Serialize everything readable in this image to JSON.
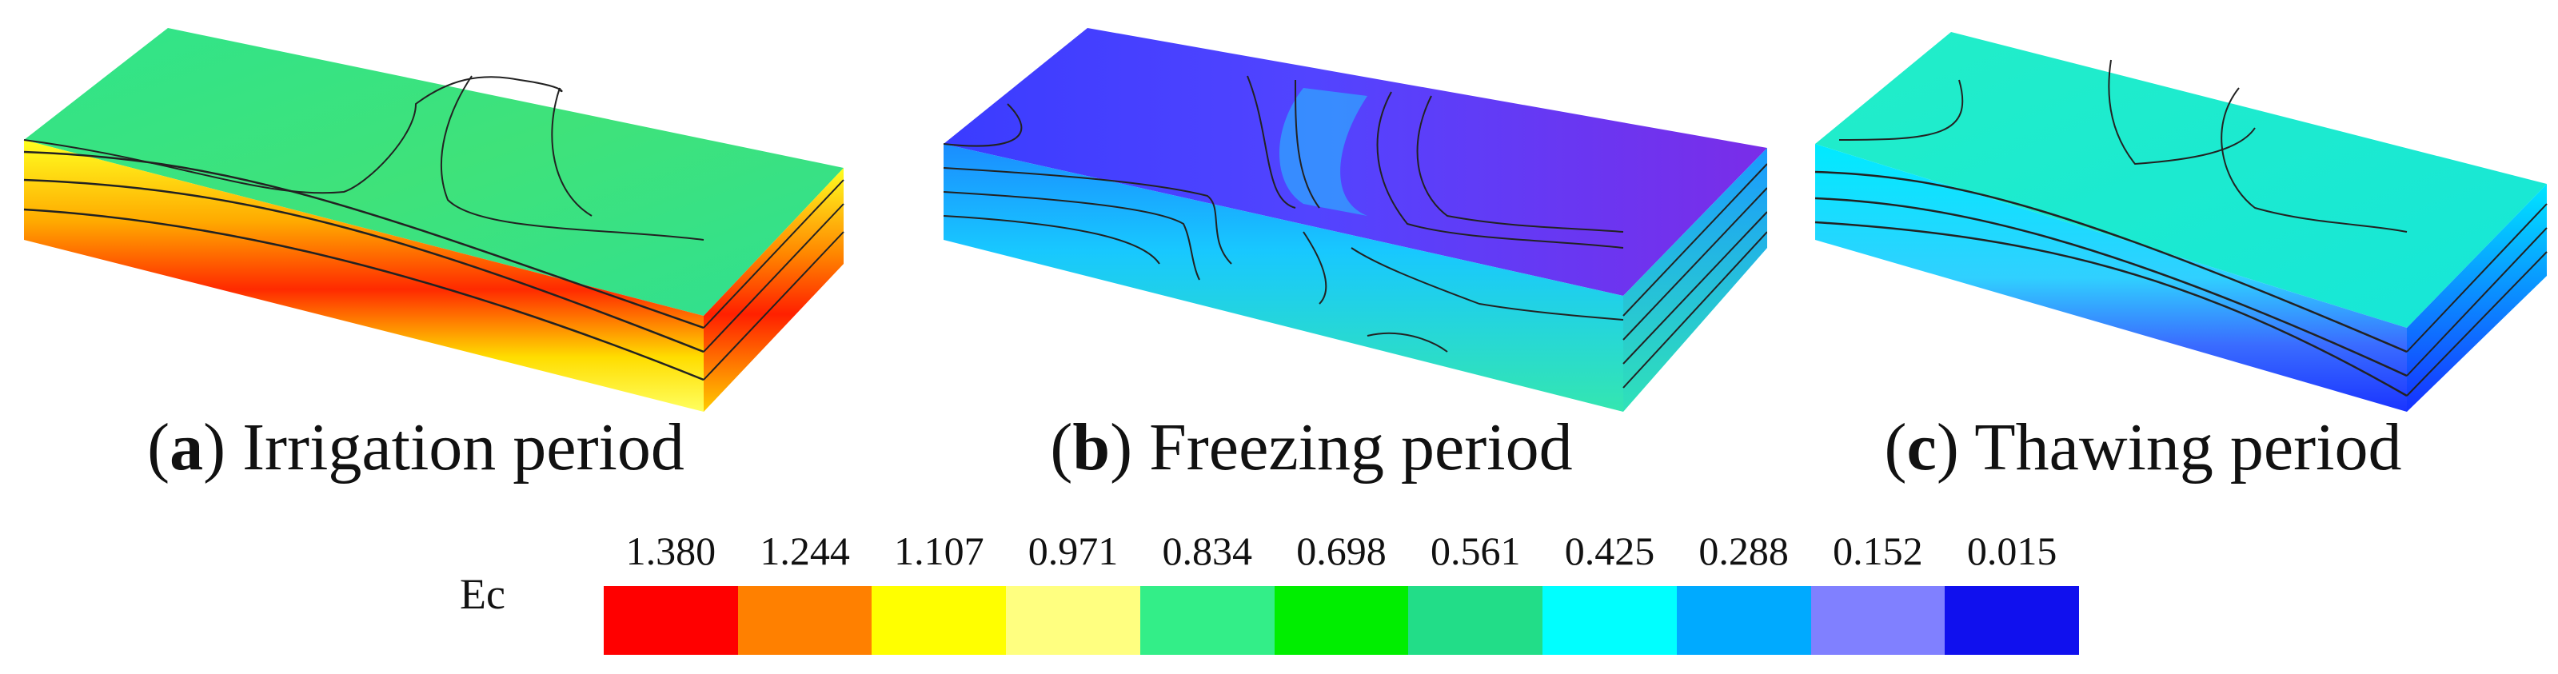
{
  "panels": [
    {
      "letter": "a",
      "title": "Irrigation period"
    },
    {
      "letter": "b",
      "title": "Freezing period"
    },
    {
      "letter": "c",
      "title": "Thawing period"
    }
  ],
  "legend": {
    "label": "Ec",
    "ticks": [
      "1.380",
      "1.244",
      "1.107",
      "0.971",
      "0.834",
      "0.698",
      "0.561",
      "0.425",
      "0.288",
      "0.152",
      "0.015"
    ],
    "colors": [
      "#ff0000",
      "#ff8000",
      "#ffff00",
      "#ffff80",
      "#33ee88",
      "#00ee00",
      "#22dd88",
      "#00ffff",
      "#00aaff",
      "#8080ff",
      "#1010ee"
    ]
  },
  "palette": {
    "irrigation_top": "#2ee08a",
    "irrigation_front": [
      "#ffff00",
      "#ffbb00",
      "#ff2000",
      "#ffdd00"
    ],
    "freezing_top": [
      "#3d3dff",
      "#6f2dff"
    ],
    "freezing_front": [
      "#18c9ff",
      "#32e8c8"
    ],
    "thawing_top": "#20f0cc",
    "thawing_front": [
      "#00e6ff",
      "#0050ff"
    ]
  }
}
